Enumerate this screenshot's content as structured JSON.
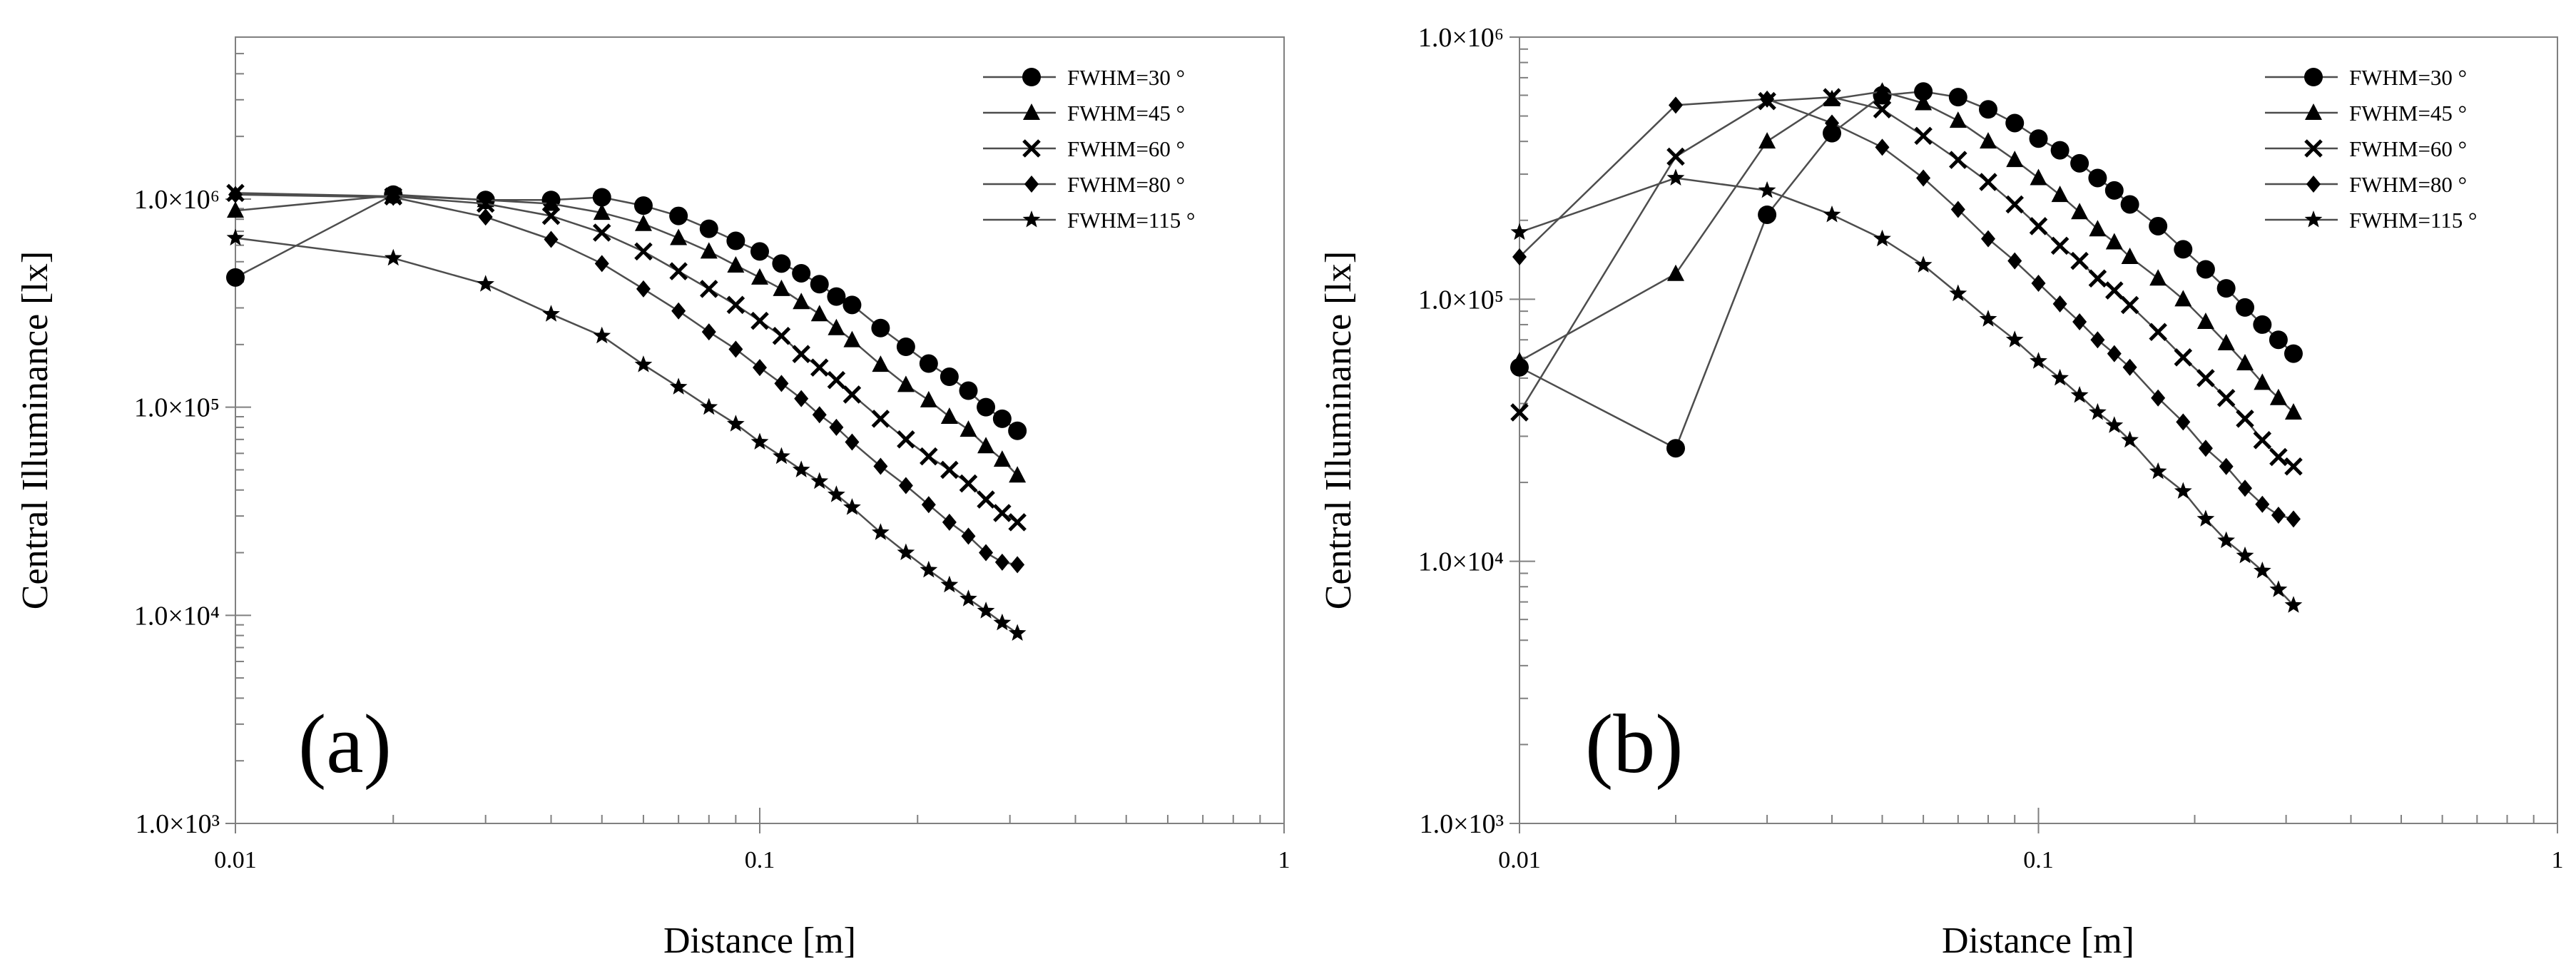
{
  "chart_data": [
    {
      "panel": "a",
      "panel_label": "(a)",
      "type": "line",
      "xscale": "log",
      "yscale": "log",
      "xlabel": "Distance [m]",
      "ylabel": "Central Illuminance [lx]",
      "xlim": [
        0.01,
        1
      ],
      "ylim": [
        1000,
        6000000
      ],
      "xticks": [
        {
          "value": 0.01,
          "label": "0.01"
        },
        {
          "value": 0.1,
          "label": "0.1"
        },
        {
          "value": 1,
          "label": "1"
        }
      ],
      "yticks": [
        {
          "value": 1000,
          "label": "1.0×10³"
        },
        {
          "value": 10000,
          "label": "1.0×10⁴"
        },
        {
          "value": 100000,
          "label": "1.0×10⁵"
        },
        {
          "value": 1000000,
          "label": "1.0×10⁶"
        }
      ],
      "legend_position": "top-right",
      "x": [
        0.01,
        0.02,
        0.03,
        0.04,
        0.05,
        0.06,
        0.07,
        0.08,
        0.09,
        0.1,
        0.11,
        0.12,
        0.13,
        0.14,
        0.15,
        0.17,
        0.19,
        0.21,
        0.23,
        0.25,
        0.27,
        0.29,
        0.31
      ],
      "series": [
        {
          "name": "FWHM=30 °",
          "marker": "circle",
          "values": [
            420000,
            1050000,
            990000,
            990000,
            1020000,
            930000,
            830000,
            720000,
            630000,
            560000,
            490000,
            440000,
            390000,
            340000,
            310000,
            240000,
            195000,
            162000,
            140000,
            120000,
            100000,
            88000,
            77000
          ]
        },
        {
          "name": "FWHM=45 °",
          "marker": "triangle",
          "values": [
            880000,
            1040000,
            990000,
            950000,
            860000,
            760000,
            650000,
            560000,
            480000,
            420000,
            370000,
            320000,
            280000,
            240000,
            210000,
            160000,
            128000,
            108000,
            90000,
            78000,
            65000,
            56000,
            47000
          ]
        },
        {
          "name": "FWHM=60 °",
          "marker": "x",
          "values": [
            1070000,
            1030000,
            950000,
            830000,
            690000,
            560000,
            450000,
            370000,
            310000,
            260000,
            220000,
            180000,
            155000,
            135000,
            115000,
            88000,
            70000,
            58000,
            50000,
            43000,
            36000,
            31000,
            28000
          ]
        },
        {
          "name": "FWHM=80 °",
          "marker": "diamond",
          "values": [
            1050000,
            1020000,
            820000,
            640000,
            490000,
            370000,
            290000,
            230000,
            190000,
            155000,
            130000,
            110000,
            92000,
            80000,
            68000,
            52000,
            42000,
            34000,
            28000,
            24000,
            20000,
            18000,
            17500
          ]
        },
        {
          "name": "FWHM=115 °",
          "marker": "star",
          "values": [
            650000,
            520000,
            390000,
            280000,
            220000,
            160000,
            125000,
            100000,
            83000,
            68000,
            58000,
            50000,
            44000,
            38000,
            33000,
            25000,
            20000,
            16500,
            14000,
            12000,
            10500,
            9200,
            8200
          ]
        }
      ]
    },
    {
      "panel": "b",
      "panel_label": "(b)",
      "type": "line",
      "xscale": "log",
      "yscale": "log",
      "xlabel": "Distance [m]",
      "ylabel": "Central Illuminance [lx]",
      "xlim": [
        0.01,
        1
      ],
      "ylim": [
        1000,
        1000000
      ],
      "xticks": [
        {
          "value": 0.01,
          "label": "0.01"
        },
        {
          "value": 0.1,
          "label": "0.1"
        },
        {
          "value": 1,
          "label": "1"
        }
      ],
      "yticks": [
        {
          "value": 1000,
          "label": "1.0×10³"
        },
        {
          "value": 10000,
          "label": "1.0×10⁴"
        },
        {
          "value": 100000,
          "label": "1.0×10⁵"
        },
        {
          "value": 1000000,
          "label": "1.0×10⁶"
        }
      ],
      "legend_position": "top-right",
      "x": [
        0.01,
        0.02,
        0.03,
        0.04,
        0.05,
        0.06,
        0.07,
        0.08,
        0.09,
        0.1,
        0.11,
        0.12,
        0.13,
        0.14,
        0.15,
        0.17,
        0.19,
        0.21,
        0.23,
        0.25,
        0.27,
        0.29,
        0.31
      ],
      "series": [
        {
          "name": "FWHM=30 °",
          "marker": "circle",
          "values": [
            55000,
            27000,
            210000,
            430000,
            600000,
            620000,
            590000,
            530000,
            470000,
            410000,
            370000,
            330000,
            290000,
            260000,
            230000,
            190000,
            155000,
            130000,
            110000,
            93000,
            80000,
            70000,
            62000
          ]
        },
        {
          "name": "FWHM=45 °",
          "marker": "triangle",
          "values": [
            58000,
            125000,
            400000,
            580000,
            620000,
            560000,
            480000,
            400000,
            340000,
            290000,
            250000,
            215000,
            185000,
            165000,
            145000,
            120000,
            100000,
            82000,
            68000,
            57000,
            48000,
            42000,
            37000
          ]
        },
        {
          "name": "FWHM=60 °",
          "marker": "x",
          "values": [
            37000,
            350000,
            570000,
            590000,
            530000,
            420000,
            340000,
            280000,
            230000,
            190000,
            160000,
            140000,
            120000,
            108000,
            95000,
            75000,
            60000,
            50000,
            42000,
            35000,
            29000,
            25000,
            23000
          ]
        },
        {
          "name": "FWHM=80 °",
          "marker": "diamond",
          "values": [
            145000,
            550000,
            580000,
            470000,
            380000,
            290000,
            220000,
            170000,
            140000,
            115000,
            96000,
            82000,
            70000,
            62000,
            55000,
            42000,
            34000,
            27000,
            23000,
            19000,
            16500,
            15000,
            14500
          ]
        },
        {
          "name": "FWHM=115 °",
          "marker": "star",
          "values": [
            180000,
            290000,
            260000,
            210000,
            170000,
            135000,
            105000,
            84000,
            70000,
            58000,
            50000,
            43000,
            37000,
            33000,
            29000,
            22000,
            18500,
            14500,
            12000,
            10500,
            9200,
            7800,
            6800
          ]
        }
      ]
    }
  ]
}
